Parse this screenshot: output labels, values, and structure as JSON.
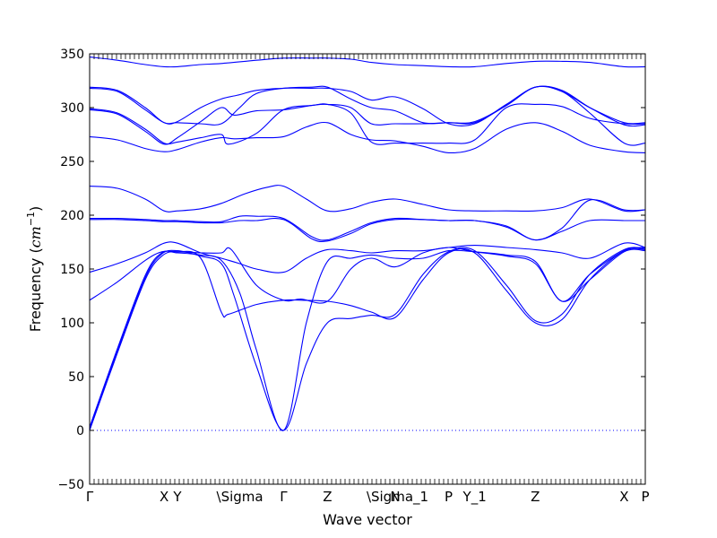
{
  "chart_data": {
    "type": "line",
    "xlabel": "Wave vector",
    "ylabel": "Frequency ($cm^{-1}$)",
    "ylabel_parts": {
      "prefix": "Frequency (",
      "math": "cm",
      "sup": "−1",
      "suffix": ")"
    },
    "ylim": [
      -50,
      350
    ],
    "xlim": [
      0,
      1
    ],
    "yticks": [
      "−50",
      "0",
      "50",
      "100",
      "150",
      "200",
      "250",
      "300",
      "350"
    ],
    "ytick_values": [
      -50,
      0,
      50,
      100,
      150,
      200,
      250,
      300,
      350
    ],
    "xticks": [
      {
        "label": "Γ",
        "x": 0.0
      },
      {
        "label": "X",
        "x": 0.134
      },
      {
        "label": "Y",
        "x": 0.158
      },
      {
        "label": "\\Sigma",
        "x": 0.237
      },
      {
        "label": "Γ",
        "x": 0.349
      },
      {
        "label": "Z",
        "x": 0.428
      },
      {
        "label": "\\Sigma_1",
        "x": 0.507
      },
      {
        "label": "N",
        "x": 0.55
      },
      {
        "label": "P",
        "x": 0.646
      },
      {
        "label": "Y_1",
        "x": 0.693
      },
      {
        "label": "Z",
        "x": 0.802
      },
      {
        "label": "X",
        "x": 0.962
      },
      {
        "label": "P",
        "x": 1.0
      }
    ],
    "zero_line": {
      "y": 0,
      "style": "dotted",
      "color": "#0000ff"
    },
    "line_color": "#0000ff",
    "series": [
      {
        "x": [
          0,
          0.05,
          0.1,
          0.13,
          0.158,
          0.2,
          0.237,
          0.25,
          0.3,
          0.349,
          0.38,
          0.428,
          0.47,
          0.507,
          0.55,
          0.6,
          0.646,
          0.693,
          0.75,
          0.802,
          0.85,
          0.9,
          0.962,
          1.0
        ],
        "y": [
          0,
          72,
          140,
          162,
          166,
          160,
          110,
          108,
          117,
          121,
          121,
          120,
          116,
          110,
          105,
          140,
          165,
          165,
          130,
          100,
          103,
          140,
          167,
          168
        ]
      },
      {
        "x": [
          0,
          0.05,
          0.1,
          0.13,
          0.158,
          0.2,
          0.237,
          0.26,
          0.3,
          0.349,
          0.39,
          0.428,
          0.47,
          0.507,
          0.55,
          0.6,
          0.646,
          0.693,
          0.75,
          0.802,
          0.85,
          0.9,
          0.962,
          1.0
        ],
        "y": [
          2,
          74,
          142,
          164,
          167,
          162,
          155,
          125,
          60,
          0,
          62,
          100,
          104,
          107,
          108,
          145,
          166,
          167,
          135,
          102,
          108,
          145,
          168,
          169
        ]
      },
      {
        "x": [
          0,
          0.05,
          0.1,
          0.13,
          0.158,
          0.2,
          0.237,
          0.27,
          0.3,
          0.349,
          0.39,
          0.428,
          0.47,
          0.507,
          0.55,
          0.6,
          0.646,
          0.693,
          0.75,
          0.802,
          0.85,
          0.9,
          0.962,
          1.0
        ],
        "y": [
          3,
          76,
          144,
          165,
          165,
          163,
          158,
          128,
          75,
          0,
          100,
          157,
          160,
          163,
          160,
          160,
          167,
          166,
          163,
          157,
          120,
          145,
          167,
          170
        ]
      },
      {
        "x": [
          0,
          0.05,
          0.1,
          0.13,
          0.158,
          0.2,
          0.237,
          0.255,
          0.3,
          0.349,
          0.38,
          0.428,
          0.47,
          0.507,
          0.55,
          0.6,
          0.646,
          0.693,
          0.75,
          0.802,
          0.85,
          0.9,
          0.962,
          1.0
        ],
        "y": [
          121,
          138,
          158,
          166,
          166,
          165,
          165,
          168,
          135,
          121,
          122,
          120,
          150,
          160,
          152,
          165,
          170,
          166,
          162,
          155,
          120,
          140,
          166,
          167
        ]
      },
      {
        "x": [
          0,
          0.05,
          0.1,
          0.134,
          0.158,
          0.2,
          0.237,
          0.27,
          0.3,
          0.349,
          0.39,
          0.428,
          0.47,
          0.507,
          0.55,
          0.6,
          0.646,
          0.693,
          0.75,
          0.802,
          0.85,
          0.9,
          0.962,
          1.0
        ],
        "y": [
          147,
          155,
          165,
          174,
          174,
          165,
          160,
          155,
          150,
          147,
          160,
          168,
          167,
          165,
          167,
          167,
          170,
          172,
          170,
          168,
          165,
          160,
          174,
          170
        ]
      },
      {
        "x": [
          0,
          0.05,
          0.1,
          0.134,
          0.158,
          0.2,
          0.237,
          0.27,
          0.3,
          0.349,
          0.4,
          0.428,
          0.47,
          0.507,
          0.55,
          0.6,
          0.646,
          0.693,
          0.75,
          0.802,
          0.85,
          0.9,
          0.962,
          1.0
        ],
        "y": [
          197,
          197,
          196,
          195,
          195,
          194,
          194,
          199,
          199,
          197,
          180,
          177,
          185,
          193,
          197,
          196,
          195,
          195,
          189,
          177,
          185,
          195,
          195,
          195
        ]
      },
      {
        "x": [
          0,
          0.05,
          0.1,
          0.134,
          0.158,
          0.2,
          0.237,
          0.27,
          0.3,
          0.349,
          0.4,
          0.428,
          0.47,
          0.507,
          0.55,
          0.6,
          0.646,
          0.693,
          0.75,
          0.802,
          0.85,
          0.9,
          0.962,
          1.0
        ],
        "y": [
          196,
          196,
          195,
          194,
          194,
          193,
          193,
          195,
          195,
          196,
          178,
          176,
          183,
          192,
          196,
          196,
          195,
          195,
          190,
          177,
          188,
          214,
          205,
          205
        ]
      },
      {
        "x": [
          0,
          0.05,
          0.1,
          0.134,
          0.158,
          0.2,
          0.237,
          0.28,
          0.32,
          0.349,
          0.39,
          0.428,
          0.47,
          0.507,
          0.55,
          0.6,
          0.646,
          0.693,
          0.75,
          0.802,
          0.85,
          0.9,
          0.962,
          1.0
        ],
        "y": [
          227,
          225,
          215,
          204,
          204,
          206,
          211,
          220,
          226,
          227,
          215,
          204,
          206,
          212,
          215,
          210,
          205,
          204,
          204,
          204,
          207,
          215,
          204,
          205
        ]
      },
      {
        "x": [
          0,
          0.05,
          0.1,
          0.134,
          0.158,
          0.2,
          0.237,
          0.26,
          0.3,
          0.349,
          0.39,
          0.428,
          0.47,
          0.507,
          0.55,
          0.6,
          0.646,
          0.693,
          0.75,
          0.802,
          0.85,
          0.9,
          0.962,
          1.0
        ],
        "y": [
          273,
          270,
          262,
          259,
          261,
          268,
          272,
          271,
          272,
          273,
          282,
          286,
          275,
          270,
          269,
          264,
          258,
          262,
          280,
          286,
          278,
          265,
          259,
          258
        ]
      },
      {
        "x": [
          0,
          0.05,
          0.1,
          0.134,
          0.158,
          0.2,
          0.237,
          0.25,
          0.3,
          0.349,
          0.4,
          0.428,
          0.47,
          0.507,
          0.55,
          0.6,
          0.646,
          0.693,
          0.75,
          0.802,
          0.85,
          0.9,
          0.962,
          1.0
        ],
        "y": [
          299,
          295,
          280,
          267,
          268,
          272,
          275,
          266,
          276,
          298,
          302,
          303,
          300,
          285,
          285,
          285,
          286,
          286,
          302,
          319,
          315,
          295,
          267,
          267
        ]
      },
      {
        "x": [
          0,
          0.05,
          0.1,
          0.134,
          0.158,
          0.2,
          0.237,
          0.26,
          0.3,
          0.349,
          0.4,
          0.428,
          0.47,
          0.507,
          0.55,
          0.6,
          0.646,
          0.693,
          0.75,
          0.802,
          0.85,
          0.9,
          0.962,
          1.0
        ],
        "y": [
          298,
          294,
          278,
          266,
          272,
          287,
          300,
          293,
          297,
          298,
          302,
          303,
          295,
          268,
          267,
          267,
          267,
          270,
          300,
          303,
          301,
          290,
          285,
          285
        ]
      },
      {
        "x": [
          0,
          0.05,
          0.1,
          0.134,
          0.158,
          0.2,
          0.237,
          0.27,
          0.3,
          0.349,
          0.4,
          0.428,
          0.47,
          0.507,
          0.55,
          0.6,
          0.646,
          0.693,
          0.75,
          0.802,
          0.85,
          0.9,
          0.962,
          1.0
        ],
        "y": [
          318,
          315,
          298,
          286,
          286,
          285,
          285,
          300,
          313,
          318,
          319,
          319,
          308,
          300,
          297,
          286,
          286,
          287,
          302,
          319,
          315,
          300,
          286,
          286
        ]
      },
      {
        "x": [
          0,
          0.05,
          0.1,
          0.134,
          0.158,
          0.2,
          0.237,
          0.27,
          0.3,
          0.349,
          0.4,
          0.428,
          0.47,
          0.507,
          0.55,
          0.6,
          0.646,
          0.693,
          0.75,
          0.802,
          0.85,
          0.9,
          0.962,
          1.0
        ],
        "y": [
          319,
          316,
          300,
          286,
          287,
          300,
          308,
          312,
          316,
          318,
          318,
          318,
          315,
          307,
          310,
          299,
          285,
          285,
          303,
          319,
          316,
          300,
          284,
          284
        ]
      },
      {
        "x": [
          0,
          0.05,
          0.1,
          0.134,
          0.158,
          0.2,
          0.237,
          0.3,
          0.349,
          0.4,
          0.428,
          0.47,
          0.507,
          0.55,
          0.6,
          0.646,
          0.693,
          0.75,
          0.802,
          0.85,
          0.9,
          0.962,
          1.0
        ],
        "y": [
          347,
          344,
          340,
          338,
          338,
          340,
          341,
          344,
          346,
          346,
          346,
          345,
          342,
          340,
          339,
          338,
          338,
          341,
          343,
          343,
          342,
          338,
          338
        ]
      }
    ]
  }
}
